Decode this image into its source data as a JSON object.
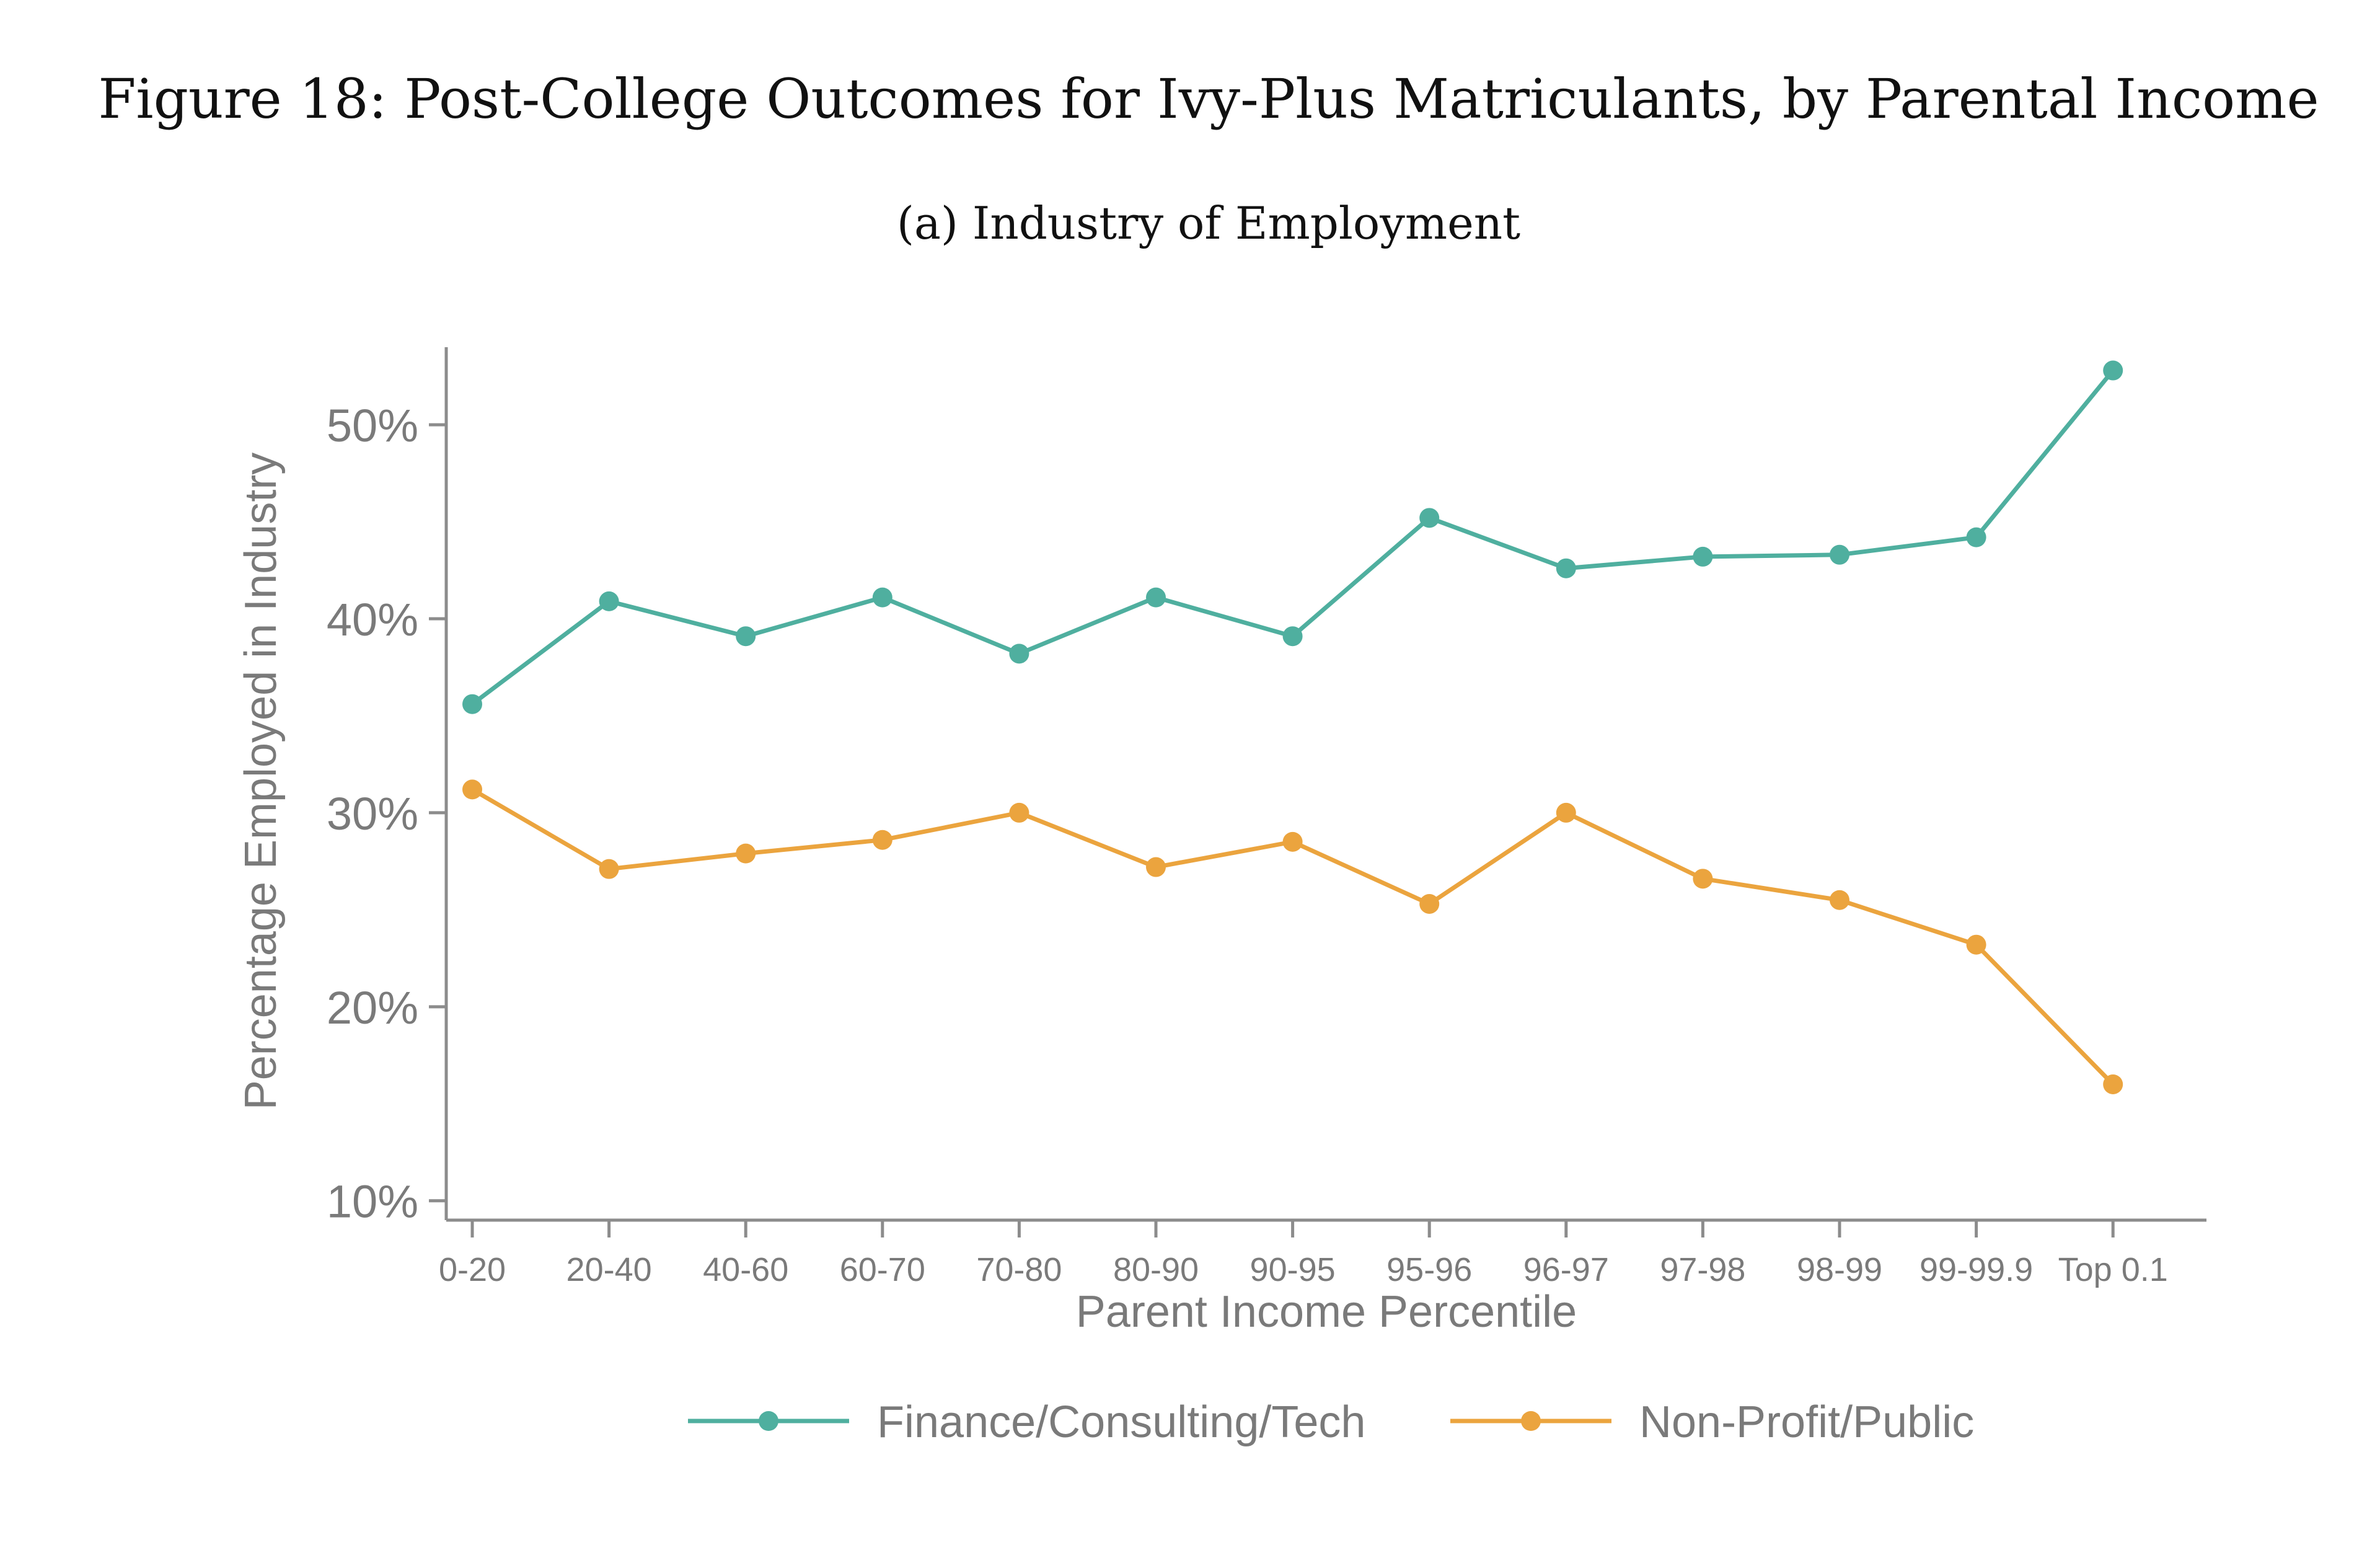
{
  "figure": {
    "title": "Figure 18: Post-College Outcomes for Ivy-Plus Matriculants, by Parental Income",
    "subtitle": "(a) Industry of Employment"
  },
  "chart_data": {
    "type": "line",
    "title": "(a) Industry of Employment",
    "xlabel": "Parent Income Percentile",
    "ylabel": "Percentage Employed in Industry",
    "categories": [
      "0-20",
      "20-40",
      "40-60",
      "60-70",
      "70-80",
      "80-90",
      "90-95",
      "95-96",
      "96-97",
      "97-98",
      "98-99",
      "99-99.9",
      "Top 0.1"
    ],
    "ylim": [
      9,
      54
    ],
    "yticks": [
      10,
      20,
      30,
      40,
      50
    ],
    "ytick_labels": [
      "10%",
      "20%",
      "30%",
      "40%",
      "50%"
    ],
    "grid": false,
    "legend_position": "bottom",
    "series": [
      {
        "name": "Finance/Consulting/Tech",
        "color": "#4FAF9F",
        "values": [
          35.6,
          40.9,
          39.1,
          41.1,
          38.2,
          41.1,
          39.1,
          45.2,
          42.6,
          43.2,
          43.3,
          44.2,
          52.8
        ]
      },
      {
        "name": "Non-Profit/Public",
        "color": "#EBA43E",
        "values": [
          31.2,
          27.1,
          27.9,
          28.6,
          30.0,
          27.2,
          28.5,
          25.3,
          30.0,
          26.6,
          25.5,
          23.2,
          16.0
        ]
      }
    ]
  },
  "colors": {
    "axis": "#8C8C8C",
    "text": "#7A7A7A",
    "title": "#111111"
  }
}
